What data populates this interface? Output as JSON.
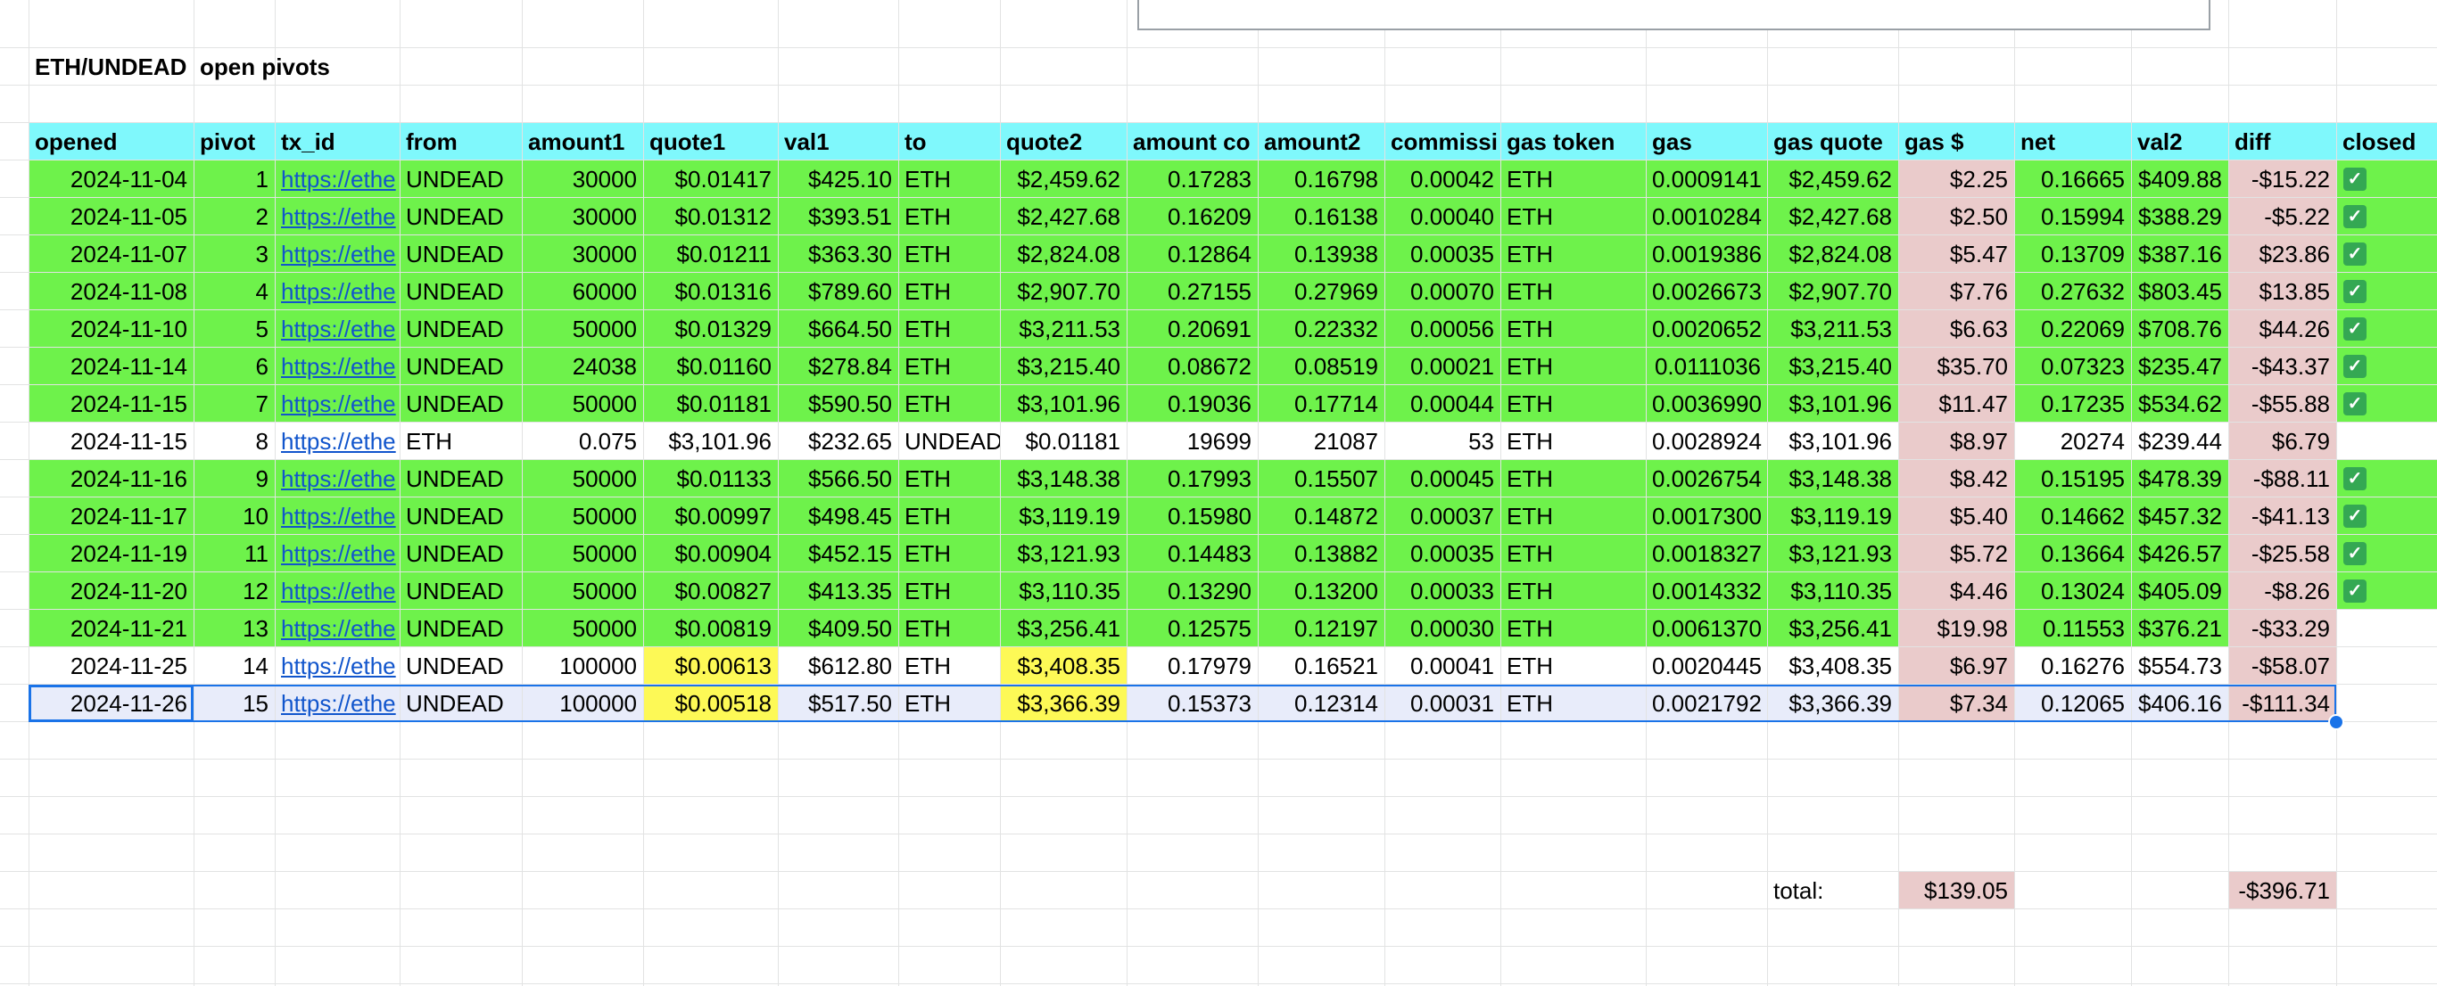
{
  "title": {
    "text": "ETH/UNDEAD",
    "subtitle": "open pivots"
  },
  "headers": [
    "opened",
    "pivot",
    "tx_id",
    "from",
    "amount1",
    "quote1",
    "val1",
    "to",
    "quote2",
    "amount co",
    "amount2",
    "commissi",
    "gas token",
    "gas",
    "gas quote",
    "gas $",
    "net",
    "val2",
    "diff",
    "closed"
  ],
  "rows": [
    {
      "status": "closed",
      "closed": true,
      "cells": [
        "2024-11-04",
        "1",
        "https://ethe",
        "UNDEAD",
        "30000",
        "$0.01417",
        "$425.10",
        "ETH",
        "$2,459.62",
        "0.17283",
        "0.16798",
        "0.00042",
        "ETH",
        "0.0009141",
        "$2,459.62",
        "$2.25",
        "0.16665",
        "$409.88",
        "-$15.22"
      ]
    },
    {
      "status": "closed",
      "closed": true,
      "cells": [
        "2024-11-05",
        "2",
        "https://ethe",
        "UNDEAD",
        "30000",
        "$0.01312",
        "$393.51",
        "ETH",
        "$2,427.68",
        "0.16209",
        "0.16138",
        "0.00040",
        "ETH",
        "0.0010284",
        "$2,427.68",
        "$2.50",
        "0.15994",
        "$388.29",
        "-$5.22"
      ]
    },
    {
      "status": "closed",
      "closed": true,
      "cells": [
        "2024-11-07",
        "3",
        "https://ethe",
        "UNDEAD",
        "30000",
        "$0.01211",
        "$363.30",
        "ETH",
        "$2,824.08",
        "0.12864",
        "0.13938",
        "0.00035",
        "ETH",
        "0.0019386",
        "$2,824.08",
        "$5.47",
        "0.13709",
        "$387.16",
        "$23.86"
      ]
    },
    {
      "status": "closed",
      "closed": true,
      "cells": [
        "2024-11-08",
        "4",
        "https://ethe",
        "UNDEAD",
        "60000",
        "$0.01316",
        "$789.60",
        "ETH",
        "$2,907.70",
        "0.27155",
        "0.27969",
        "0.00070",
        "ETH",
        "0.0026673",
        "$2,907.70",
        "$7.76",
        "0.27632",
        "$803.45",
        "$13.85"
      ]
    },
    {
      "status": "closed",
      "closed": true,
      "cells": [
        "2024-11-10",
        "5",
        "https://ethe",
        "UNDEAD",
        "50000",
        "$0.01329",
        "$664.50",
        "ETH",
        "$3,211.53",
        "0.20691",
        "0.22332",
        "0.00056",
        "ETH",
        "0.0020652",
        "$3,211.53",
        "$6.63",
        "0.22069",
        "$708.76",
        "$44.26"
      ]
    },
    {
      "status": "closed",
      "closed": true,
      "cells": [
        "2024-11-14",
        "6",
        "https://ethe",
        "UNDEAD",
        "24038",
        "$0.01160",
        "$278.84",
        "ETH",
        "$3,215.40",
        "0.08672",
        "0.08519",
        "0.00021",
        "ETH",
        "0.0111036",
        "$3,215.40",
        "$35.70",
        "0.07323",
        "$235.47",
        "-$43.37"
      ]
    },
    {
      "status": "closed",
      "closed": true,
      "cells": [
        "2024-11-15",
        "7",
        "https://ethe",
        "UNDEAD",
        "50000",
        "$0.01181",
        "$590.50",
        "ETH",
        "$3,101.96",
        "0.19036",
        "0.17714",
        "0.00044",
        "ETH",
        "0.0036990",
        "$3,101.96",
        "$11.47",
        "0.17235",
        "$534.62",
        "-$55.88"
      ]
    },
    {
      "status": "open",
      "closed": false,
      "cells": [
        "2024-11-15",
        "8",
        "https://ethe",
        "ETH",
        "0.075",
        "$3,101.96",
        "$232.65",
        "UNDEAD",
        "$0.01181",
        "19699",
        "21087",
        "53",
        "ETH",
        "0.0028924",
        "$3,101.96",
        "$8.97",
        "20274",
        "$239.44",
        "$6.79"
      ]
    },
    {
      "status": "closed",
      "closed": true,
      "cells": [
        "2024-11-16",
        "9",
        "https://ethe",
        "UNDEAD",
        "50000",
        "$0.01133",
        "$566.50",
        "ETH",
        "$3,148.38",
        "0.17993",
        "0.15507",
        "0.00045",
        "ETH",
        "0.0026754",
        "$3,148.38",
        "$8.42",
        "0.15195",
        "$478.39",
        "-$88.11"
      ]
    },
    {
      "status": "closed",
      "closed": true,
      "cells": [
        "2024-11-17",
        "10",
        "https://ethe",
        "UNDEAD",
        "50000",
        "$0.00997",
        "$498.45",
        "ETH",
        "$3,119.19",
        "0.15980",
        "0.14872",
        "0.00037",
        "ETH",
        "0.0017300",
        "$3,119.19",
        "$5.40",
        "0.14662",
        "$457.32",
        "-$41.13"
      ]
    },
    {
      "status": "closed",
      "closed": true,
      "cells": [
        "2024-11-19",
        "11",
        "https://ethe",
        "UNDEAD",
        "50000",
        "$0.00904",
        "$452.15",
        "ETH",
        "$3,121.93",
        "0.14483",
        "0.13882",
        "0.00035",
        "ETH",
        "0.0018327",
        "$3,121.93",
        "$5.72",
        "0.13664",
        "$426.57",
        "-$25.58"
      ]
    },
    {
      "status": "closed",
      "closed": true,
      "cells": [
        "2024-11-20",
        "12",
        "https://ethe",
        "UNDEAD",
        "50000",
        "$0.00827",
        "$413.35",
        "ETH",
        "$3,110.35",
        "0.13290",
        "0.13200",
        "0.00033",
        "ETH",
        "0.0014332",
        "$3,110.35",
        "$4.46",
        "0.13024",
        "$405.09",
        "-$8.26"
      ]
    },
    {
      "status": "green",
      "closed": false,
      "cells": [
        "2024-11-21",
        "13",
        "https://ethe",
        "UNDEAD",
        "50000",
        "$0.00819",
        "$409.50",
        "ETH",
        "$3,256.41",
        "0.12575",
        "0.12197",
        "0.00030",
        "ETH",
        "0.0061370",
        "$3,256.41",
        "$19.98",
        "0.11553",
        "$376.21",
        "-$33.29"
      ]
    },
    {
      "status": "open",
      "closed": false,
      "cells": [
        "2024-11-25",
        "14",
        "https://ethe",
        "UNDEAD",
        "100000",
        "$0.00613",
        "$612.80",
        "ETH",
        "$3,408.35",
        "0.17979",
        "0.16521",
        "0.00041",
        "ETH",
        "0.0020445",
        "$3,408.35",
        "$6.97",
        "0.16276",
        "$554.73",
        "-$58.07"
      ]
    },
    {
      "status": "selected",
      "closed": false,
      "cells": [
        "2024-11-26",
        "15",
        "https://ethe",
        "UNDEAD",
        "100000",
        "$0.00518",
        "$517.50",
        "ETH",
        "$3,366.39",
        "0.15373",
        "0.12314",
        "0.00031",
        "ETH",
        "0.0021792",
        "$3,366.39",
        "$7.34",
        "0.12065",
        "$406.16",
        "-$111.34"
      ]
    }
  ],
  "totals": {
    "label": "total:",
    "gas_usd": "$139.05",
    "diff": "-$396.71"
  },
  "colors": {
    "header_bg": "#7ff8fc",
    "closed_row_bg": "#6ef24b",
    "gas_diff_bg": "#eacbcb",
    "quote_highlight": "#fdf956",
    "selected_row_bg": "#e8ecfa",
    "link": "#1155cc",
    "checkbox": "#34a853",
    "gridline": "#e2e3e3",
    "selection": "#1a73e8"
  },
  "icons": {
    "closed_checkbox": "checked-checkbox-icon"
  }
}
